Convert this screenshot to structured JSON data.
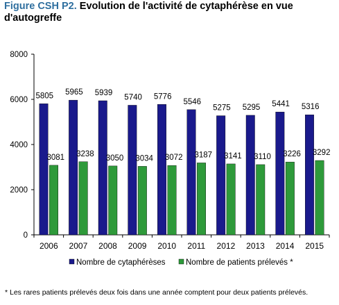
{
  "figure_label": "Figure CSH P2.",
  "figure_title": "Evolution de l'activité de cytaphérèse en vue d'autogreffe",
  "footnote": "* Les rares patients prélevés deux fois dans une année comptent pour deux patients prélevés.",
  "colors": {
    "series1": "#1a1a8c",
    "series2": "#2e9a3a"
  },
  "chart_data": {
    "type": "bar",
    "categories": [
      "2006",
      "2007",
      "2008",
      "2009",
      "2010",
      "2011",
      "2012",
      "2013",
      "2014",
      "2015"
    ],
    "series": [
      {
        "name": "Nombre de cytaphérèses",
        "values": [
          5805,
          5965,
          5939,
          5740,
          5776,
          5546,
          5275,
          5295,
          5441,
          5316
        ]
      },
      {
        "name": "Nombre de patients prélevés *",
        "values": [
          3081,
          3238,
          3050,
          3034,
          3072,
          3187,
          3141,
          3110,
          3226,
          3292
        ]
      }
    ],
    "ylim": [
      0,
      8000
    ],
    "yticks": [
      0,
      2000,
      4000,
      6000,
      8000
    ],
    "grid": false,
    "legend": "bottom",
    "data_labels": true
  }
}
